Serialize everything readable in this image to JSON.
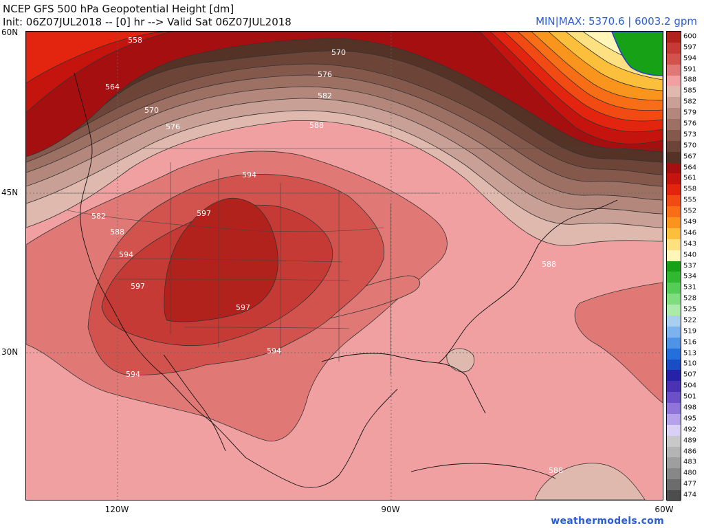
{
  "header": {
    "title_line1": "NCEP GFS 500 hPa Geopotential Height [dm]",
    "title_line2": "Init: 06Z07JUL2018 -- [0] hr --> Valid Sat 06Z07JUL2018",
    "minmax": "MIN|MAX: 5370.6 | 6003.2 gpm"
  },
  "axes": {
    "lat_labels": [
      "60N",
      "45N",
      "30N"
    ],
    "lon_labels": [
      "120W",
      "90W",
      "60W"
    ]
  },
  "credit": "weathermodels.com",
  "colorbar": {
    "levels": [
      {
        "label": "600",
        "color": "#b1221c"
      },
      {
        "label": "597",
        "color": "#c53a35"
      },
      {
        "label": "594",
        "color": "#d2524d"
      },
      {
        "label": "591",
        "color": "#e07975"
      },
      {
        "label": "588",
        "color": "#f0a0a0"
      },
      {
        "label": "585",
        "color": "#dfb8ae"
      },
      {
        "label": "582",
        "color": "#c9a095"
      },
      {
        "label": "579",
        "color": "#b4877c"
      },
      {
        "label": "576",
        "color": "#9d7064"
      },
      {
        "label": "573",
        "color": "#85584c"
      },
      {
        "label": "570",
        "color": "#6d4438"
      },
      {
        "label": "567",
        "color": "#553226"
      },
      {
        "label": "564",
        "color": "#a50f0f"
      },
      {
        "label": "561",
        "color": "#c4140d"
      },
      {
        "label": "558",
        "color": "#e3250f"
      },
      {
        "label": "555",
        "color": "#f24a13"
      },
      {
        "label": "552",
        "color": "#f76e16"
      },
      {
        "label": "549",
        "color": "#f9951c"
      },
      {
        "label": "546",
        "color": "#fbbf3c"
      },
      {
        "label": "543",
        "color": "#fde080"
      },
      {
        "label": "540",
        "color": "#fff6b8"
      },
      {
        "label": "537",
        "color": "#17a117"
      },
      {
        "label": "534",
        "color": "#31b831"
      },
      {
        "label": "531",
        "color": "#55cc55"
      },
      {
        "label": "528",
        "color": "#7fdc7f"
      },
      {
        "label": "525",
        "color": "#abeaa8"
      },
      {
        "label": "522",
        "color": "#a8cff0"
      },
      {
        "label": "519",
        "color": "#7cb3ee"
      },
      {
        "label": "516",
        "color": "#4e93e6"
      },
      {
        "label": "513",
        "color": "#2370dc"
      },
      {
        "label": "510",
        "color": "#1a4dc4"
      },
      {
        "label": "507",
        "color": "#2622a8"
      },
      {
        "label": "504",
        "color": "#4b32b4"
      },
      {
        "label": "501",
        "color": "#6c50c8"
      },
      {
        "label": "498",
        "color": "#8f74da"
      },
      {
        "label": "495",
        "color": "#b5a2ea"
      },
      {
        "label": "492",
        "color": "#d9d0f5"
      },
      {
        "label": "489",
        "color": "#c8c8c8"
      },
      {
        "label": "486",
        "color": "#b4b4b4"
      },
      {
        "label": "483",
        "color": "#9e9e9e"
      },
      {
        "label": "480",
        "color": "#878787"
      },
      {
        "label": "477",
        "color": "#6c6c6c"
      },
      {
        "label": "474",
        "color": "#4d4d4d"
      }
    ]
  },
  "contour_labels": {
    "c558": "558",
    "c564": "564",
    "c570a": "570",
    "c570b": "570",
    "c576a": "576",
    "c576b": "576",
    "c582a": "582",
    "c582b": "582",
    "c588a": "588",
    "c588b": "588",
    "c588c": "588",
    "c588d": "588",
    "c594a": "594",
    "c594b": "594",
    "c594c": "594",
    "c594d": "594",
    "c597a": "597",
    "c597b": "597",
    "c597c": "597"
  }
}
